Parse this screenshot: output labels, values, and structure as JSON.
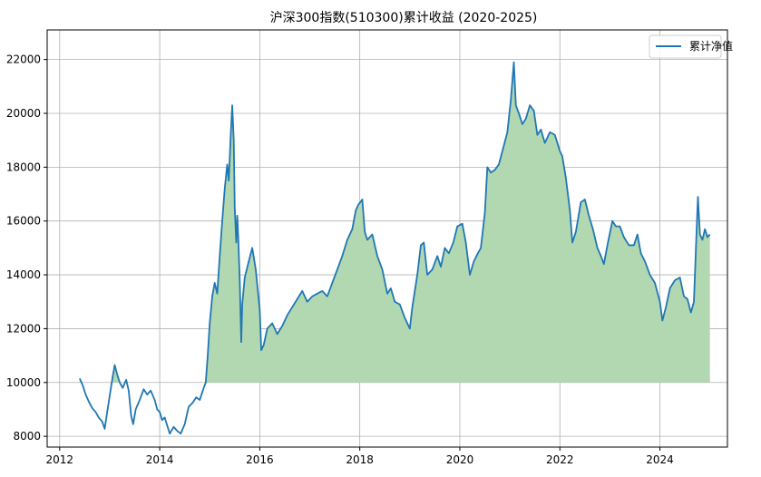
{
  "chart_data": {
    "type": "line",
    "title": "沪深300指数(510300)累计收益 (2020-2025)",
    "xlabel": "",
    "ylabel": "",
    "xlim": [
      2011.75,
      2025.35
    ],
    "ylim": [
      7600,
      23100
    ],
    "x_ticks": [
      "2012",
      "2014",
      "2016",
      "2018",
      "2020",
      "2022",
      "2024"
    ],
    "y_ticks": [
      "8000",
      "10000",
      "12000",
      "14000",
      "16000",
      "18000",
      "20000",
      "22000"
    ],
    "grid": true,
    "legend_position": "top-right",
    "line_color": "#1f77b4",
    "fill_color": "#b2d8b2",
    "fill_baseline": 10000,
    "series": [
      {
        "name": "累计净值",
        "points": [
          [
            2012.4,
            10150
          ],
          [
            2012.46,
            9900
          ],
          [
            2012.52,
            9550
          ],
          [
            2012.58,
            9300
          ],
          [
            2012.65,
            9050
          ],
          [
            2012.72,
            8900
          ],
          [
            2012.78,
            8700
          ],
          [
            2012.85,
            8550
          ],
          [
            2012.9,
            8280
          ],
          [
            2012.95,
            8900
          ],
          [
            2013.0,
            9500
          ],
          [
            2013.05,
            10100
          ],
          [
            2013.1,
            10650
          ],
          [
            2013.15,
            10300
          ],
          [
            2013.2,
            10000
          ],
          [
            2013.26,
            9800
          ],
          [
            2013.33,
            10100
          ],
          [
            2013.38,
            9700
          ],
          [
            2013.43,
            8750
          ],
          [
            2013.47,
            8450
          ],
          [
            2013.52,
            9000
          ],
          [
            2013.6,
            9350
          ],
          [
            2013.68,
            9750
          ],
          [
            2013.75,
            9550
          ],
          [
            2013.82,
            9700
          ],
          [
            2013.9,
            9350
          ],
          [
            2013.95,
            9000
          ],
          [
            2014.0,
            8900
          ],
          [
            2014.05,
            8600
          ],
          [
            2014.1,
            8700
          ],
          [
            2014.15,
            8400
          ],
          [
            2014.2,
            8100
          ],
          [
            2014.28,
            8350
          ],
          [
            2014.35,
            8200
          ],
          [
            2014.42,
            8100
          ],
          [
            2014.5,
            8450
          ],
          [
            2014.58,
            9100
          ],
          [
            2014.66,
            9250
          ],
          [
            2014.73,
            9450
          ],
          [
            2014.8,
            9350
          ],
          [
            2014.88,
            9800
          ],
          [
            2014.92,
            10000
          ],
          [
            2014.96,
            11000
          ],
          [
            2015.0,
            12200
          ],
          [
            2015.05,
            13200
          ],
          [
            2015.1,
            13700
          ],
          [
            2015.15,
            13300
          ],
          [
            2015.2,
            14700
          ],
          [
            2015.25,
            16000
          ],
          [
            2015.3,
            17200
          ],
          [
            2015.35,
            18100
          ],
          [
            2015.38,
            17500
          ],
          [
            2015.42,
            19200
          ],
          [
            2015.45,
            20300
          ],
          [
            2015.48,
            19000
          ],
          [
            2015.5,
            16500
          ],
          [
            2015.53,
            15200
          ],
          [
            2015.55,
            16200
          ],
          [
            2015.57,
            15400
          ],
          [
            2015.6,
            13800
          ],
          [
            2015.63,
            11500
          ],
          [
            2015.65,
            12900
          ],
          [
            2015.7,
            13900
          ],
          [
            2015.78,
            14500
          ],
          [
            2015.85,
            15000
          ],
          [
            2015.92,
            14200
          ],
          [
            2016.0,
            12700
          ],
          [
            2016.03,
            11200
          ],
          [
            2016.08,
            11400
          ],
          [
            2016.15,
            12000
          ],
          [
            2016.25,
            12200
          ],
          [
            2016.35,
            11800
          ],
          [
            2016.45,
            12100
          ],
          [
            2016.55,
            12500
          ],
          [
            2016.65,
            12800
          ],
          [
            2016.75,
            13100
          ],
          [
            2016.85,
            13400
          ],
          [
            2016.95,
            13000
          ],
          [
            2017.05,
            13200
          ],
          [
            2017.15,
            13300
          ],
          [
            2017.25,
            13400
          ],
          [
            2017.35,
            13200
          ],
          [
            2017.45,
            13700
          ],
          [
            2017.55,
            14200
          ],
          [
            2017.65,
            14700
          ],
          [
            2017.75,
            15300
          ],
          [
            2017.85,
            15700
          ],
          [
            2017.92,
            16400
          ],
          [
            2017.97,
            16600
          ],
          [
            2018.05,
            16800
          ],
          [
            2018.1,
            15600
          ],
          [
            2018.15,
            15300
          ],
          [
            2018.25,
            15500
          ],
          [
            2018.35,
            14700
          ],
          [
            2018.45,
            14200
          ],
          [
            2018.55,
            13300
          ],
          [
            2018.62,
            13500
          ],
          [
            2018.7,
            13000
          ],
          [
            2018.8,
            12900
          ],
          [
            2018.9,
            12400
          ],
          [
            2019.0,
            12000
          ],
          [
            2019.05,
            12800
          ],
          [
            2019.15,
            14000
          ],
          [
            2019.22,
            15100
          ],
          [
            2019.28,
            15200
          ],
          [
            2019.35,
            14000
          ],
          [
            2019.45,
            14200
          ],
          [
            2019.55,
            14700
          ],
          [
            2019.62,
            14300
          ],
          [
            2019.7,
            15000
          ],
          [
            2019.78,
            14800
          ],
          [
            2019.87,
            15200
          ],
          [
            2019.95,
            15800
          ],
          [
            2020.05,
            15900
          ],
          [
            2020.12,
            15200
          ],
          [
            2020.2,
            14000
          ],
          [
            2020.28,
            14500
          ],
          [
            2020.36,
            14800
          ],
          [
            2020.42,
            15000
          ],
          [
            2020.5,
            16300
          ],
          [
            2020.55,
            18000
          ],
          [
            2020.62,
            17800
          ],
          [
            2020.7,
            17900
          ],
          [
            2020.78,
            18100
          ],
          [
            2020.88,
            18800
          ],
          [
            2020.95,
            19300
          ],
          [
            2021.02,
            20500
          ],
          [
            2021.08,
            21900
          ],
          [
            2021.12,
            20300
          ],
          [
            2021.18,
            20000
          ],
          [
            2021.25,
            19600
          ],
          [
            2021.32,
            19800
          ],
          [
            2021.4,
            20300
          ],
          [
            2021.48,
            20100
          ],
          [
            2021.55,
            19200
          ],
          [
            2021.62,
            19400
          ],
          [
            2021.7,
            18900
          ],
          [
            2021.8,
            19300
          ],
          [
            2021.9,
            19200
          ],
          [
            2022.0,
            18600
          ],
          [
            2022.05,
            18400
          ],
          [
            2022.12,
            17600
          ],
          [
            2022.2,
            16400
          ],
          [
            2022.25,
            15200
          ],
          [
            2022.32,
            15600
          ],
          [
            2022.42,
            16700
          ],
          [
            2022.5,
            16800
          ],
          [
            2022.58,
            16200
          ],
          [
            2022.66,
            15700
          ],
          [
            2022.75,
            15000
          ],
          [
            2022.82,
            14700
          ],
          [
            2022.88,
            14400
          ],
          [
            2022.95,
            15100
          ],
          [
            2023.05,
            16000
          ],
          [
            2023.12,
            15800
          ],
          [
            2023.2,
            15800
          ],
          [
            2023.28,
            15400
          ],
          [
            2023.38,
            15100
          ],
          [
            2023.48,
            15100
          ],
          [
            2023.55,
            15500
          ],
          [
            2023.62,
            14800
          ],
          [
            2023.7,
            14500
          ],
          [
            2023.8,
            14000
          ],
          [
            2023.9,
            13700
          ],
          [
            2024.0,
            13000
          ],
          [
            2024.05,
            12300
          ],
          [
            2024.12,
            12800
          ],
          [
            2024.2,
            13500
          ],
          [
            2024.3,
            13800
          ],
          [
            2024.4,
            13900
          ],
          [
            2024.48,
            13200
          ],
          [
            2024.55,
            13100
          ],
          [
            2024.62,
            12600
          ],
          [
            2024.68,
            13000
          ],
          [
            2024.72,
            15000
          ],
          [
            2024.76,
            16900
          ],
          [
            2024.8,
            15500
          ],
          [
            2024.85,
            15300
          ],
          [
            2024.9,
            15700
          ],
          [
            2024.95,
            15400
          ],
          [
            2025.0,
            15500
          ]
        ]
      }
    ]
  }
}
